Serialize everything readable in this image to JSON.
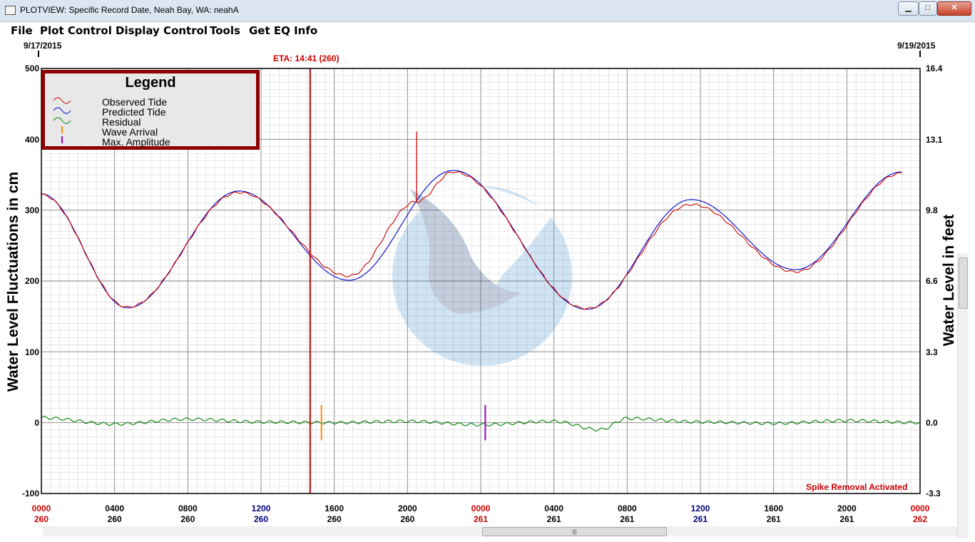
{
  "window": {
    "title": "PLOTVIEW: Specific Record Date, Neah Bay, WA: neahA",
    "controls": {
      "minimize": "▁",
      "maximize": "□",
      "close": "✕"
    }
  },
  "menu": [
    "File",
    "Plot Control",
    "Display Control",
    "Tools",
    "Get EQ Info"
  ],
  "dates": {
    "start": "9/17/2015",
    "end": "9/19/2015"
  },
  "eta_label": "ETA: 14:41 (260)",
  "axes": {
    "left_title": "Water Level Fluctuations in cm",
    "right_title": "Water Level in feet",
    "left_ticks": [
      "500",
      "400",
      "300",
      "200",
      "100",
      "0",
      "-100"
    ],
    "right_ticks": [
      "16.4",
      "13.1",
      "9.8",
      "6.6",
      "3.3",
      "0.0",
      "-3.3"
    ],
    "x_ticks": [
      {
        "time": "0000",
        "day": "260",
        "color": "#cc0000"
      },
      {
        "time": "0400",
        "day": "260",
        "color": "#000000"
      },
      {
        "time": "0800",
        "day": "260",
        "color": "#000000"
      },
      {
        "time": "1200",
        "day": "260",
        "color": "#000080"
      },
      {
        "time": "1600",
        "day": "260",
        "color": "#000000"
      },
      {
        "time": "2000",
        "day": "260",
        "color": "#000000"
      },
      {
        "time": "0000",
        "day": "261",
        "color": "#cc0000"
      },
      {
        "time": "0400",
        "day": "261",
        "color": "#000000"
      },
      {
        "time": "0800",
        "day": "261",
        "color": "#000000"
      },
      {
        "time": "1200",
        "day": "261",
        "color": "#000080"
      },
      {
        "time": "1600",
        "day": "261",
        "color": "#000000"
      },
      {
        "time": "2000",
        "day": "261",
        "color": "#000000"
      },
      {
        "time": "0000",
        "day": "262",
        "color": "#cc0000"
      }
    ]
  },
  "legend": {
    "title": "Legend",
    "items": [
      {
        "label": "Observed Tide",
        "color": "#cc0000",
        "icon": "wave-icon"
      },
      {
        "label": "Predicted Tide",
        "color": "#0000cc",
        "icon": "wave-icon"
      },
      {
        "label": "Residual",
        "color": "#008000",
        "icon": "wave-icon"
      },
      {
        "label": "Wave Arrival",
        "color": "#ff8c00",
        "icon": "tick-icon"
      },
      {
        "label": "Max. Amplitude",
        "color": "#9900cc",
        "icon": "tick-icon"
      }
    ]
  },
  "spike_note": "Spike Removal Activated",
  "chart_data": {
    "type": "line",
    "x_unit": "hours from 0000 day 260",
    "xlim": [
      0,
      48
    ],
    "ylim": [
      -100,
      500
    ],
    "grid": true,
    "legend_position": "top-left",
    "series": [
      {
        "name": "Predicted Tide",
        "color": "#0000cc",
        "x": [
          0,
          4.7,
          10.8,
          16.8,
          22.5,
          29.8,
          35.5,
          41.2,
          47
        ],
        "y": [
          323,
          162,
          327,
          201,
          356,
          160,
          315,
          216,
          354
        ]
      },
      {
        "name": "Observed Tide",
        "color": "#cc0000",
        "x": [
          0,
          4.7,
          10.8,
          16.8,
          20.5,
          22.5,
          29.8,
          35.5,
          41.2,
          47
        ],
        "y": [
          322,
          163,
          325,
          207,
          312,
          354,
          161,
          308,
          213,
          352
        ]
      },
      {
        "name": "Residual",
        "color": "#008000",
        "x": [
          0,
          4,
          8,
          12,
          16,
          20,
          24,
          28,
          30.5,
          32,
          36,
          40,
          44,
          48
        ],
        "y": [
          7,
          -2,
          5,
          1,
          0,
          2,
          -3,
          2,
          -10,
          6,
          1,
          -1,
          3,
          0
        ]
      }
    ],
    "events": [
      {
        "name": "ETA",
        "x": 14.68,
        "color": "#cc0000"
      },
      {
        "name": "Wave Arrival",
        "x": 15.3,
        "color": "#ff8c00"
      },
      {
        "name": "Max. Amplitude",
        "x": 24.25,
        "color": "#9900cc"
      },
      {
        "name": "Spike",
        "x": 20.5,
        "y_peak": 411,
        "color": "#cc0000"
      }
    ]
  }
}
